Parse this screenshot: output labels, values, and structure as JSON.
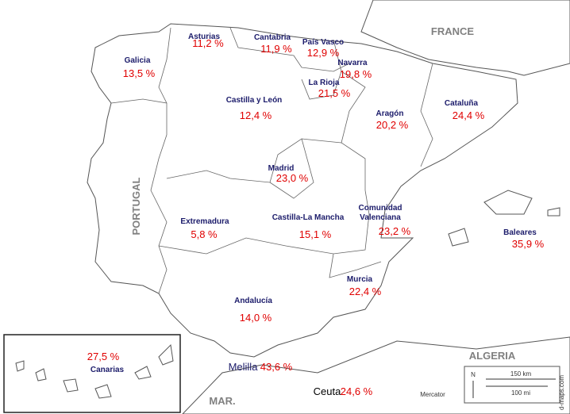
{
  "map": {
    "regions": [
      {
        "name": "Galicia",
        "value": "13,5 %"
      },
      {
        "name": "Asturias",
        "value": "11,2 %"
      },
      {
        "name": "Cantabria",
        "value": "11,9 %"
      },
      {
        "name": "País Vasco",
        "value": "12,9 %"
      },
      {
        "name": "Navarra",
        "value": "19,8 %"
      },
      {
        "name": "La Rioja",
        "value": "21,5 %"
      },
      {
        "name": "Castilla y León",
        "value": "12,4 %"
      },
      {
        "name": "Aragón",
        "value": "20,2 %"
      },
      {
        "name": "Cataluña",
        "value": "24,4 %"
      },
      {
        "name": "Madrid",
        "value": "23,0 %"
      },
      {
        "name": "Extremadura",
        "value": "5,8 %"
      },
      {
        "name": "Castilla-La Mancha",
        "value": "15,1 %"
      },
      {
        "name": [
          "Comunidad",
          "Valenciana"
        ],
        "value": "23,2 %"
      },
      {
        "name": "Baleares",
        "value": "35,9 %"
      },
      {
        "name": "Murcia",
        "value": "22,4 %"
      },
      {
        "name": "Andalucía",
        "value": "14,0 %"
      },
      {
        "name": "Canarias",
        "value": "27,5 %"
      },
      {
        "name": "Melilla",
        "value": "43,6 %"
      },
      {
        "name": "Ceuta",
        "value": "24,6 %"
      }
    ],
    "countries": [
      "FRANCE",
      "PORTUGAL",
      "ALGERIA",
      "MAR."
    ],
    "scale": {
      "north": "N",
      "km": "150 km",
      "mi": "100 mi",
      "projection": "Mercator",
      "source": "d-maps.com"
    }
  }
}
